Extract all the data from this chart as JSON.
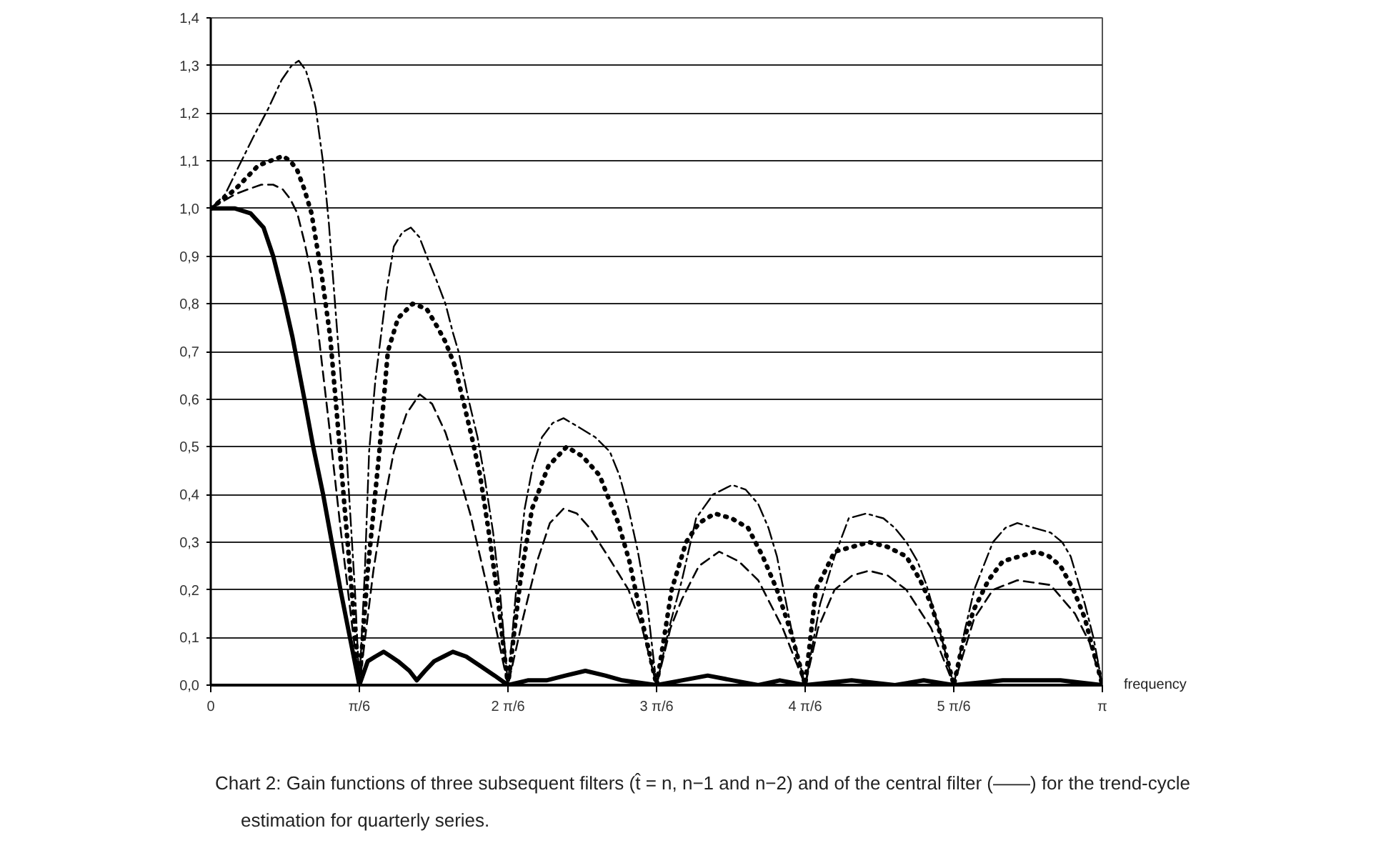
{
  "chart_data": {
    "type": "line",
    "xlabel": "frequency",
    "annotations": [
      "Chart 2: Gain functions of three subsequent filters (t̂ = n, n−1 and n−2) and of the central filter (——) for the trend-cycle estimation for quarterly series."
    ],
    "xlim": [
      0,
      3.1416
    ],
    "xticks": [
      0,
      {
        "value": 0.5236,
        "label": "π/6"
      },
      {
        "value": 1.0472,
        "label": "2 π/6"
      },
      {
        "value": 1.5708,
        "label": "3 π/6"
      },
      {
        "value": 2.0944,
        "label": "4 π/6"
      },
      {
        "value": 2.618,
        "label": "5 π/6"
      },
      {
        "value": 3.1416,
        "label": "π"
      }
    ],
    "ylim": [
      0,
      1.4
    ],
    "yticks": [
      {
        "value": 0,
        "label": "0,0"
      },
      {
        "value": 0.1,
        "label": "0,1"
      },
      {
        "value": 0.2,
        "label": "0,2"
      },
      {
        "value": 0.3,
        "label": "0,3"
      },
      {
        "value": 0.4,
        "label": "0,4"
      },
      {
        "value": 0.5,
        "label": "0,5"
      },
      {
        "value": 0.6,
        "label": "0,6"
      },
      {
        "value": 0.7,
        "label": "0,7"
      },
      {
        "value": 0.8,
        "label": "0,8"
      },
      {
        "value": 0.9,
        "label": "0,9"
      },
      {
        "value": 1.0,
        "label": "1,0"
      },
      {
        "value": 1.1,
        "label": "1,1"
      },
      {
        "value": 1.2,
        "label": "1,2"
      },
      {
        "value": 1.3,
        "label": "1,3"
      },
      {
        "value": 1.4,
        "label": "1,4"
      }
    ],
    "grid": "y",
    "series": [
      {
        "color": "#000000",
        "line_style": "dashdot",
        "x": [
          0,
          0.051,
          0.1,
          0.15,
          0.203,
          0.25,
          0.285,
          0.31,
          0.335,
          0.355,
          0.37,
          0.395,
          0.416,
          0.447,
          0.477,
          0.508,
          0.5236,
          0.543,
          0.558,
          0.58,
          0.599,
          0.62,
          0.645,
          0.675,
          0.705,
          0.735,
          0.761,
          0.795,
          0.827,
          0.853,
          0.873,
          0.908,
          0.94,
          0.964,
          0.995,
          1.02,
          1.0472,
          1.076,
          1.106,
          1.135,
          1.167,
          1.205,
          1.243,
          1.3,
          1.355,
          1.406,
          1.44,
          1.472,
          1.505,
          1.538,
          1.5708,
          1.615,
          1.66,
          1.71,
          1.77,
          1.837,
          1.885,
          1.929,
          1.965,
          1.995,
          2.045,
          2.0944,
          2.147,
          2.198,
          2.248,
          2.309,
          2.37,
          2.41,
          2.451,
          2.49,
          2.522,
          2.57,
          2.618,
          2.655,
          2.69,
          2.756,
          2.8,
          2.842,
          2.9,
          2.959,
          3.0,
          3.03,
          3.08,
          3.11,
          3.1416
        ],
        "values": [
          1.0,
          1.03,
          1.09,
          1.15,
          1.21,
          1.27,
          1.3,
          1.31,
          1.29,
          1.25,
          1.21,
          1.1,
          0.97,
          0.73,
          0.5,
          0.2,
          0,
          0.24,
          0.49,
          0.64,
          0.73,
          0.83,
          0.92,
          0.95,
          0.96,
          0.94,
          0.9,
          0.85,
          0.8,
          0.74,
          0.7,
          0.6,
          0.52,
          0.44,
          0.32,
          0.19,
          0,
          0.2,
          0.37,
          0.46,
          0.52,
          0.55,
          0.56,
          0.54,
          0.52,
          0.49,
          0.44,
          0.37,
          0.28,
          0.17,
          0,
          0.12,
          0.22,
          0.35,
          0.4,
          0.42,
          0.41,
          0.38,
          0.33,
          0.27,
          0.12,
          0,
          0.17,
          0.27,
          0.35,
          0.36,
          0.35,
          0.33,
          0.3,
          0.26,
          0.21,
          0.11,
          0,
          0.11,
          0.2,
          0.3,
          0.33,
          0.34,
          0.33,
          0.32,
          0.3,
          0.27,
          0.17,
          0.1,
          0
        ]
      },
      {
        "color": "#000000",
        "line_style": "dotted",
        "x": [
          0,
          0.086,
          0.167,
          0.21,
          0.254,
          0.28,
          0.305,
          0.33,
          0.355,
          0.391,
          0.421,
          0.447,
          0.472,
          0.508,
          0.5236,
          0.553,
          0.594,
          0.624,
          0.66,
          0.711,
          0.76,
          0.8,
          0.827,
          0.86,
          0.888,
          0.92,
          0.949,
          0.98,
          1.01,
          1.0472,
          1.091,
          1.132,
          1.19,
          1.254,
          1.31,
          1.37,
          1.436,
          1.475,
          1.507,
          1.5708,
          1.624,
          1.675,
          1.72,
          1.776,
          1.835,
          1.893,
          1.945,
          1.995,
          2.045,
          2.0944,
          2.132,
          2.198,
          2.26,
          2.319,
          2.385,
          2.451,
          2.5,
          2.538,
          2.58,
          2.618,
          2.65,
          2.69,
          2.74,
          2.791,
          2.85,
          2.908,
          2.954,
          2.994,
          3.04,
          3.08,
          3.1416
        ],
        "values": [
          1.0,
          1.04,
          1.09,
          1.1,
          1.11,
          1.1,
          1.08,
          1.04,
          0.99,
          0.86,
          0.73,
          0.55,
          0.37,
          0.12,
          0,
          0.24,
          0.49,
          0.7,
          0.77,
          0.8,
          0.79,
          0.75,
          0.72,
          0.67,
          0.6,
          0.52,
          0.44,
          0.32,
          0.19,
          0,
          0.22,
          0.37,
          0.46,
          0.5,
          0.48,
          0.44,
          0.34,
          0.26,
          0.17,
          0,
          0.2,
          0.3,
          0.34,
          0.36,
          0.35,
          0.33,
          0.27,
          0.2,
          0.11,
          0,
          0.2,
          0.28,
          0.29,
          0.3,
          0.29,
          0.27,
          0.22,
          0.17,
          0.09,
          0,
          0.09,
          0.16,
          0.22,
          0.26,
          0.27,
          0.28,
          0.27,
          0.25,
          0.2,
          0.14,
          0
        ]
      },
      {
        "color": "#000000",
        "line_style": "dashed",
        "x": [
          0,
          0.086,
          0.13,
          0.178,
          0.22,
          0.254,
          0.28,
          0.305,
          0.33,
          0.355,
          0.381,
          0.416,
          0.457,
          0.497,
          0.5236,
          0.573,
          0.61,
          0.645,
          0.69,
          0.736,
          0.78,
          0.827,
          0.87,
          0.914,
          0.98,
          1.0472,
          1.1,
          1.15,
          1.195,
          1.243,
          1.29,
          1.335,
          1.4,
          1.472,
          1.52,
          1.5708,
          1.62,
          1.66,
          1.72,
          1.791,
          1.86,
          1.929,
          2.015,
          2.0944,
          2.14,
          2.198,
          2.26,
          2.319,
          2.385,
          2.451,
          2.538,
          2.618,
          2.69,
          2.756,
          2.842,
          2.959,
          3.045,
          3.096,
          3.1416
        ],
        "values": [
          1.0,
          1.03,
          1.04,
          1.05,
          1.05,
          1.04,
          1.02,
          0.99,
          0.93,
          0.86,
          0.73,
          0.55,
          0.33,
          0.13,
          0,
          0.24,
          0.38,
          0.49,
          0.57,
          0.61,
          0.59,
          0.53,
          0.45,
          0.36,
          0.19,
          0,
          0.14,
          0.26,
          0.34,
          0.37,
          0.36,
          0.33,
          0.27,
          0.2,
          0.12,
          0,
          0.12,
          0.18,
          0.25,
          0.28,
          0.26,
          0.22,
          0.12,
          0,
          0.12,
          0.2,
          0.23,
          0.24,
          0.23,
          0.2,
          0.12,
          0,
          0.14,
          0.2,
          0.22,
          0.21,
          0.15,
          0.09,
          0
        ]
      },
      {
        "color": "#000000",
        "line_style": "solid",
        "x": [
          0,
          0.086,
          0.14,
          0.186,
          0.22,
          0.254,
          0.288,
          0.33,
          0.361,
          0.396,
          0.457,
          0.5236,
          0.553,
          0.58,
          0.609,
          0.635,
          0.66,
          0.7,
          0.726,
          0.755,
          0.787,
          0.82,
          0.853,
          0.9,
          0.95,
          1.0,
          1.0472,
          1.117,
          1.183,
          1.25,
          1.32,
          1.39,
          1.45,
          1.5708,
          1.66,
          1.751,
          1.84,
          1.929,
          2.005,
          2.0944,
          2.258,
          2.411,
          2.512,
          2.618,
          2.791,
          2.994,
          3.1416
        ],
        "values": [
          1.0,
          1.0,
          0.99,
          0.96,
          0.9,
          0.82,
          0.73,
          0.6,
          0.5,
          0.4,
          0.2,
          0,
          0.05,
          0.06,
          0.07,
          0.06,
          0.05,
          0.03,
          0.01,
          0.03,
          0.05,
          0.06,
          0.07,
          0.06,
          0.04,
          0.02,
          0,
          0.01,
          0.01,
          0.02,
          0.03,
          0.02,
          0.01,
          0,
          0.01,
          0.02,
          0.01,
          0,
          0.01,
          0,
          0.01,
          0,
          0.01,
          0,
          0.01,
          0.01,
          0
        ]
      }
    ]
  }
}
